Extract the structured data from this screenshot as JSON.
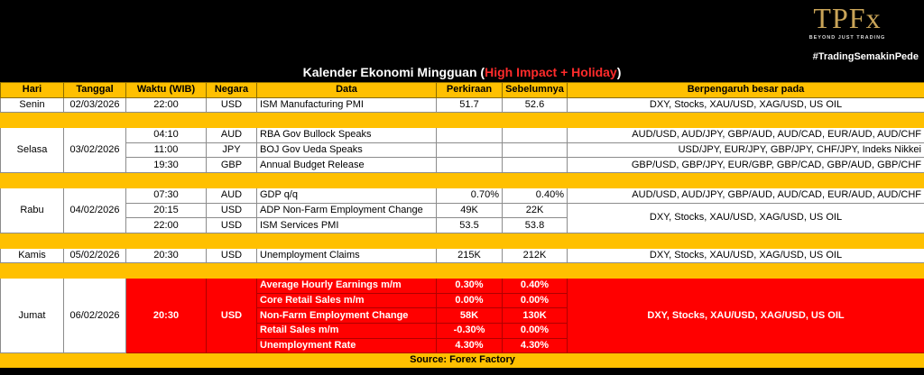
{
  "brand": {
    "logo": "TPFx",
    "tagline": "BEYOND JUST TRADING",
    "hashtag": "#TradingSemakinPede"
  },
  "title": {
    "main": "Kalender Ekonomi Mingguan (",
    "highlight": "High Impact + Holiday",
    "end": ")"
  },
  "headers": [
    "Hari",
    "Tanggal",
    "Waktu (WIB)",
    "Negara",
    "Data",
    "Perkiraan",
    "Sebelumnya",
    "Berpengaruh besar pada"
  ],
  "senin": {
    "day": "Senin",
    "date": "02/03/2026",
    "time": "22:00",
    "country": "USD",
    "data": "ISM Manufacturing PMI",
    "forecast": "51.7",
    "previous": "52.6",
    "impact": "DXY, Stocks, XAU/USD, XAG/USD, US OIL"
  },
  "selasa": {
    "day": "Selasa",
    "date": "03/02/2026",
    "rows": [
      {
        "time": "04:10",
        "country": "AUD",
        "data": "RBA Gov Bullock Speaks",
        "forecast": "",
        "previous": "",
        "impact": "AUD/USD, AUD/JPY, GBP/AUD, AUD/CAD, EUR/AUD, AUD/CHF"
      },
      {
        "time": "11:00",
        "country": "JPY",
        "data": "BOJ Gov Ueda Speaks",
        "forecast": "",
        "previous": "",
        "impact": "USD/JPY, EUR/JPY, GBP/JPY, CHF/JPY, Indeks Nikkei"
      },
      {
        "time": "19:30",
        "country": "GBP",
        "data": "Annual Budget Release",
        "forecast": "",
        "previous": "",
        "impact": "GBP/USD, GBP/JPY, EUR/GBP, GBP/CAD, GBP/AUD, GBP/CHF"
      }
    ]
  },
  "rabu": {
    "day": "Rabu",
    "date": "04/02/2026",
    "rows": [
      {
        "time": "07:30",
        "country": "AUD",
        "data": "GDP q/q",
        "forecast": "0.70%",
        "previous": "0.40%",
        "impact": "AUD/USD, AUD/JPY, GBP/AUD, AUD/CAD, EUR/AUD, AUD/CHF"
      },
      {
        "time": "20:15",
        "country": "USD",
        "data": "ADP Non-Farm Employment Change",
        "forecast": "49K",
        "previous": "22K"
      },
      {
        "time": "22:00",
        "country": "USD",
        "data": "ISM Services PMI",
        "forecast": "53.5",
        "previous": "53.8"
      }
    ],
    "impact_usd": "DXY, Stocks, XAU/USD, XAG/USD, US OIL"
  },
  "kamis": {
    "day": "Kamis",
    "date": "05/02/2026",
    "time": "20:30",
    "country": "USD",
    "data": "Unemployment Claims",
    "forecast": "215K",
    "previous": "212K",
    "impact": "DXY, Stocks, XAU/USD, XAG/USD, US OIL"
  },
  "jumat": {
    "day": "Jumat",
    "date": "06/02/2026",
    "time": "20:30",
    "country": "USD",
    "rows": [
      {
        "data": "Average Hourly Earnings m/m",
        "forecast": "0.30%",
        "previous": "0.40%"
      },
      {
        "data": "Core Retail Sales m/m",
        "forecast": "0.00%",
        "previous": "0.00%"
      },
      {
        "data": "Non-Farm Employment Change",
        "forecast": "58K",
        "previous": "130K"
      },
      {
        "data": "Retail Sales m/m",
        "forecast": "-0.30%",
        "previous": "0.00%"
      },
      {
        "data": "Unemployment Rate",
        "forecast": "4.30%",
        "previous": "4.30%"
      }
    ],
    "impact": "DXY, Stocks, XAU/USD, XAG/USD, US OIL"
  },
  "source": "Source: Forex Factory",
  "colors": {
    "header": "#ffc000",
    "highlight_row": "#ff0000",
    "background": "#000000",
    "title_highlight": "#ff2b2b",
    "logo": "#c9a458"
  }
}
